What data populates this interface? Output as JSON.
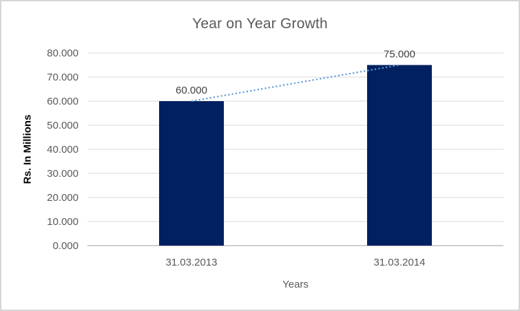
{
  "chart_data": {
    "type": "bar",
    "title": "Year on Year Growth",
    "xlabel": "Years",
    "ylabel": "Rs. In Millions",
    "categories": [
      "31.03.2013",
      "31.03.2014"
    ],
    "values": [
      60,
      75
    ],
    "data_labels": [
      "60.000",
      "75.000"
    ],
    "ylim": [
      0,
      80
    ],
    "ytick_interval": 10,
    "ytick_labels": [
      "0.000",
      "10.000",
      "20.000",
      "30.000",
      "40.000",
      "50.000",
      "60.000",
      "70.000",
      "80.000"
    ],
    "grid": true,
    "legend": "none",
    "trendline": {
      "type": "linear",
      "style": "dotted",
      "points": [
        60,
        75
      ]
    }
  },
  "style": {
    "bar_color": "#002060",
    "trendline_color": "#5b9bd5",
    "gridline_color": "#d9d9d9",
    "axis_line_color": "#bfbfbf",
    "tick_text_color": "#595959",
    "title_text_color": "#595959",
    "data_label_color": "#404040",
    "border_color": "#d5d5d5"
  }
}
